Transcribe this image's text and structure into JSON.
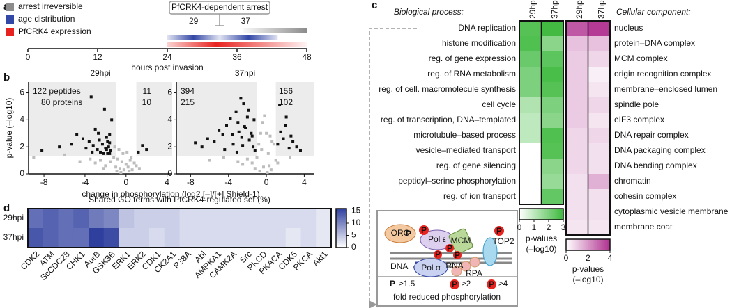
{
  "panels": [
    "a",
    "b",
    "c",
    "d"
  ],
  "chart_data": [
    {
      "type": "timeline",
      "xlabel": "hours post invasion",
      "xlim": [
        0,
        48
      ],
      "xticks": [
        0,
        12,
        24,
        36,
        48
      ],
      "annotation": "PfCRK4-dependent arrest",
      "peaks": [
        29,
        37
      ],
      "series": [
        {
          "name": "arrest irreversible",
          "color": "#8c8c8c",
          "ranges": [
            [
              37,
              48
            ]
          ]
        },
        {
          "name": "age distribution",
          "color": "#3347a6",
          "ranges": [
            [
              24,
              33
            ],
            [
              33,
              43
            ]
          ]
        },
        {
          "name": "PfCRK4 expression",
          "color": "#e8231f",
          "ranges": [
            [
              24,
              48
            ]
          ]
        }
      ]
    },
    {
      "type": "scatter",
      "title": "29hpi",
      "ylabel": "p-value (–log10)",
      "xlabel": "change in phosphorylation   (log2 [–]/[+] Shield-1)",
      "xlim": [
        -9.5,
        4.5
      ],
      "xticks": [
        -8,
        -4,
        0,
        4
      ],
      "ylim": [
        0,
        6.8
      ],
      "yticks": [
        0,
        2,
        4,
        6
      ],
      "shade_x": [
        -1,
        1
      ],
      "shade_y": 1.3,
      "annotations": {
        "left": [
          "122 peptides",
          "80 proteins"
        ],
        "right": [
          "11",
          "10"
        ]
      },
      "series": [
        {
          "color": "#bdbdbd",
          "x": [
            -9,
            -6,
            -4.5,
            -3.5,
            -3,
            -2.5,
            -2,
            -1.5,
            -1.2,
            -1,
            -0.8,
            -0.6,
            -0.4,
            -0.2,
            0,
            0.2,
            0.4,
            0.6,
            0.8,
            1,
            1.3,
            -1.1,
            -0.7,
            -0.3,
            0.1,
            0.5,
            -2.2,
            -0.9,
            -0.5,
            0.3
          ],
          "y": [
            1.2,
            1.4,
            0.9,
            1.1,
            0.8,
            1.0,
            0.6,
            0.9,
            1.2,
            0.5,
            1.1,
            0.4,
            0.9,
            0.3,
            0.7,
            0.5,
            1.0,
            0.3,
            0.8,
            0.6,
            0.4,
            2.0,
            1.8,
            1.5,
            1.6,
            1.2,
            0.4,
            0.2,
            0.1,
            0.2
          ]
        },
        {
          "color": "#111111",
          "x": [
            -8.2,
            -6.5,
            -5.3,
            -4.8,
            -4.2,
            -3.9,
            -3.6,
            -3.4,
            -3.2,
            -3.0,
            -2.8,
            -2.6,
            -2.5,
            -2.3,
            -2.1,
            -2.0,
            -1.9,
            -1.8,
            -1.7,
            -1.6,
            -1.5,
            -1.4,
            -2.7,
            -3.3,
            -2.2,
            -1.9,
            -1.6,
            1.2,
            1.6,
            2.0,
            -1.6,
            -1.8
          ],
          "y": [
            1.7,
            2.0,
            2.2,
            2.9,
            2.6,
            1.9,
            2.4,
            5.7,
            2.1,
            3.3,
            1.8,
            2.5,
            1.6,
            2.2,
            4.8,
            1.9,
            2.7,
            1.5,
            2.0,
            2.3,
            1.7,
            4.0,
            3.0,
            1.6,
            1.5,
            1.8,
            2.9,
            1.6,
            2.1,
            1.8,
            1.5,
            2.4
          ]
        }
      ]
    },
    {
      "type": "scatter",
      "title": "37hpi",
      "xlim": [
        -9.5,
        5
      ],
      "xticks": [
        -8,
        -4,
        0,
        4
      ],
      "ylim": [
        0,
        6.8
      ],
      "yticks": [
        0,
        2,
        4,
        6
      ],
      "shade_x": [
        -1,
        1
      ],
      "shade_y": 1.3,
      "annotations": {
        "left": [
          "394",
          "215"
        ],
        "right": [
          "156",
          "102"
        ]
      },
      "series": [
        {
          "color": "#bdbdbd",
          "x": [
            -6,
            -4.5,
            -3,
            -2,
            -1.5,
            -1,
            -0.8,
            -0.6,
            -0.4,
            -0.2,
            0,
            0.2,
            0.4,
            0.6,
            0.8,
            1,
            1.2,
            -0.5,
            -0.3,
            0.3,
            -1.2,
            0.5,
            -0.7,
            0.1,
            -2.5,
            2.5
          ],
          "y": [
            1.0,
            1.2,
            0.9,
            1.1,
            0.8,
            1.2,
            2.2,
            3.0,
            3.8,
            4.3,
            3.0,
            1.5,
            2.8,
            2.4,
            2.2,
            1.0,
            0.8,
            1.8,
            0.5,
            0.6,
            0.4,
            0.3,
            0.2,
            0.1,
            0.7,
            1.2
          ]
        },
        {
          "color": "#111111",
          "x": [
            -7.5,
            -6.8,
            -6.2,
            -5.5,
            -5.0,
            -4.6,
            -4.2,
            -3.8,
            -3.5,
            -3.2,
            -2.9,
            -2.6,
            -2.4,
            -2.2,
            -2.0,
            -1.8,
            -1.6,
            -1.4,
            -1.2,
            -4.4,
            -3.6,
            -3.0,
            -2.7,
            -2.3,
            -1.9,
            -1.5,
            -3.1,
            -2.5,
            1.2,
            1.5,
            1.8,
            2.1,
            2.4,
            2.8,
            3.2,
            3.6,
            1.4,
            2.0,
            2.6,
            -1.3
          ],
          "y": [
            2.3,
            2.0,
            2.6,
            2.4,
            3.2,
            2.9,
            3.6,
            4.1,
            2.2,
            4.6,
            3.1,
            2.7,
            5.2,
            3.4,
            4.2,
            2.5,
            3.0,
            2.0,
            1.7,
            1.8,
            2.9,
            3.8,
            5.6,
            3.5,
            4.7,
            2.8,
            1.6,
            2.1,
            2.2,
            3.1,
            2.6,
            4.2,
            1.9,
            2.4,
            2.0,
            1.7,
            5.1,
            3.6,
            2.8,
            4.0
          ]
        }
      ]
    },
    {
      "type": "heatmap",
      "title": "Biological process:",
      "columns": [
        "29hpi",
        "37hpi"
      ],
      "color": "#3cb93c",
      "zlim": [
        0,
        3
      ],
      "zticks": [
        0,
        1,
        2,
        3
      ],
      "zlabel": [
        "p-values",
        "(–log10)"
      ],
      "rows": [
        "DNA replication",
        "histone modification",
        "reg. of gene expression",
        "reg. of RNA metabolism",
        "reg. of cell. macromolecule synthesis",
        "cell cycle",
        "reg. of transcription, DNA–templated",
        "microtubule–based process",
        "vesicle–mediated transport",
        "reg. of gene silencing",
        "peptidyl–serine phosphorylation",
        "reg. of ion transport"
      ],
      "values": [
        [
          2.6,
          2.9
        ],
        [
          2.7,
          1.8
        ],
        [
          2.3,
          2.5
        ],
        [
          2.0,
          2.8
        ],
        [
          2.0,
          2.6
        ],
        [
          1.2,
          2.0
        ],
        [
          1.0,
          1.8
        ],
        [
          1.0,
          2.7
        ],
        [
          0,
          2.6
        ],
        [
          0,
          1.8
        ],
        [
          0,
          1.6
        ],
        [
          0,
          2.4
        ]
      ]
    },
    {
      "type": "heatmap",
      "title": "Cellular component:",
      "columns": [
        "29hpi",
        "37hpi"
      ],
      "color": "#b0308f",
      "zlim": [
        0,
        4
      ],
      "zticks": [
        0,
        2,
        4
      ],
      "zlabel": [
        "p-values",
        "(–log10)"
      ],
      "rows": [
        "nucleus",
        "protein–DNA complex",
        "MCM complex",
        "origin recognition complex",
        "membrane–enclosed lumen",
        "spindle pole",
        "eIF3 complex",
        "DNA repair complex",
        "DNA packaging complex",
        "DNA bending complex",
        "chromatin",
        "cohesin complex",
        "cytoplasmic vesicle membrane",
        "membrane coat"
      ],
      "values": [
        [
          3.2,
          3.8
        ],
        [
          1.2,
          1.2
        ],
        [
          1.0,
          0.8
        ],
        [
          1.0,
          0.3
        ],
        [
          1.0,
          0.5
        ],
        [
          1.0,
          0.8
        ],
        [
          1.0,
          0.5
        ],
        [
          0.8,
          0.8
        ],
        [
          0.8,
          0.6
        ],
        [
          0.8,
          0.6
        ],
        [
          0.6,
          1.5
        ],
        [
          0.6,
          0.6
        ],
        [
          0.6,
          0.6
        ],
        [
          0.5,
          0.5
        ]
      ]
    },
    {
      "type": "heatmap",
      "title": "Shared GO terms with PfCRK4-regulated set (%)",
      "color": "#2f3f9e",
      "zlim": [
        0,
        16
      ],
      "zticks": [
        0,
        5,
        10,
        15
      ],
      "rows": [
        "29hpi",
        "37hpi"
      ],
      "columns": [
        "CDK2",
        "ATM",
        "ScCDC28",
        "CHK1",
        "AurB",
        "GSK3B",
        "ERK1",
        "ERK2",
        "CDK1",
        "CK2A1",
        "P38A",
        "Abl",
        "AMPKA1",
        "CAMK2A",
        "Src",
        "PKCD",
        "PKACA",
        "CDK5",
        "PKCA",
        "Akt1"
      ],
      "values": [
        [
          12,
          13,
          12,
          13,
          11,
          10,
          5,
          4,
          4,
          4,
          3,
          3,
          3,
          3,
          3,
          3,
          3,
          3,
          3,
          2
        ],
        [
          14,
          13,
          12,
          12,
          16,
          15,
          4,
          4,
          3,
          4,
          3,
          3,
          3,
          3,
          3,
          3,
          3,
          2,
          3,
          2
        ]
      ]
    }
  ],
  "diagram": {
    "labels": [
      "ORC",
      "Pol ε",
      "MCM",
      "TOP2",
      "DNA",
      "RNA",
      "Pol α",
      "RPA"
    ],
    "phospho": "P",
    "legend": [
      "≥1.5",
      "≥2",
      "≥4"
    ],
    "caption": "fold reduced phosphorylation"
  }
}
